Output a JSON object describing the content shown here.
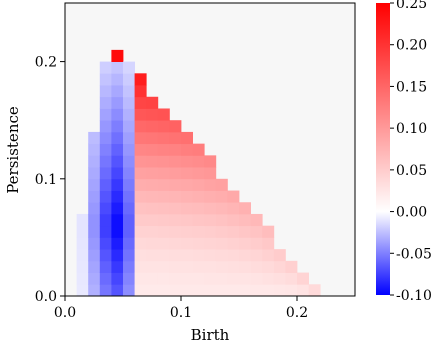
{
  "chart_data": {
    "type": "heatmap",
    "title": "",
    "xlabel": "Birth",
    "ylabel": "Persistence",
    "xlim": [
      0.0,
      0.25
    ],
    "ylim": [
      0.0,
      0.25
    ],
    "xticks": [
      {
        "value": 0.0,
        "label": "0.0"
      },
      {
        "value": 0.1,
        "label": "0.1"
      },
      {
        "value": 0.2,
        "label": "0.2"
      }
    ],
    "yticks": [
      {
        "value": 0.0,
        "label": "0.0"
      },
      {
        "value": 0.1,
        "label": "0.1"
      },
      {
        "value": 0.2,
        "label": "0.2"
      }
    ],
    "bin_width": 0.01,
    "colorbar": {
      "range": [
        -0.1,
        0.25
      ],
      "cmap": "bwr",
      "ticks": [
        {
          "value": 0.25,
          "label": "0.25"
        },
        {
          "value": 0.2,
          "label": "0.20"
        },
        {
          "value": 0.15,
          "label": "0.15"
        },
        {
          "value": 0.1,
          "label": "0.10"
        },
        {
          "value": 0.05,
          "label": "0.05"
        },
        {
          "value": 0.0,
          "label": "0.00"
        },
        {
          "value": -0.05,
          "label": "-0.05"
        },
        {
          "value": -0.1,
          "label": "-0.10"
        }
      ]
    },
    "colors": {
      "background": "#f7f7f7",
      "min": "#0000ff",
      "mid": "#ffffff",
      "max": "#ff0000"
    }
  }
}
